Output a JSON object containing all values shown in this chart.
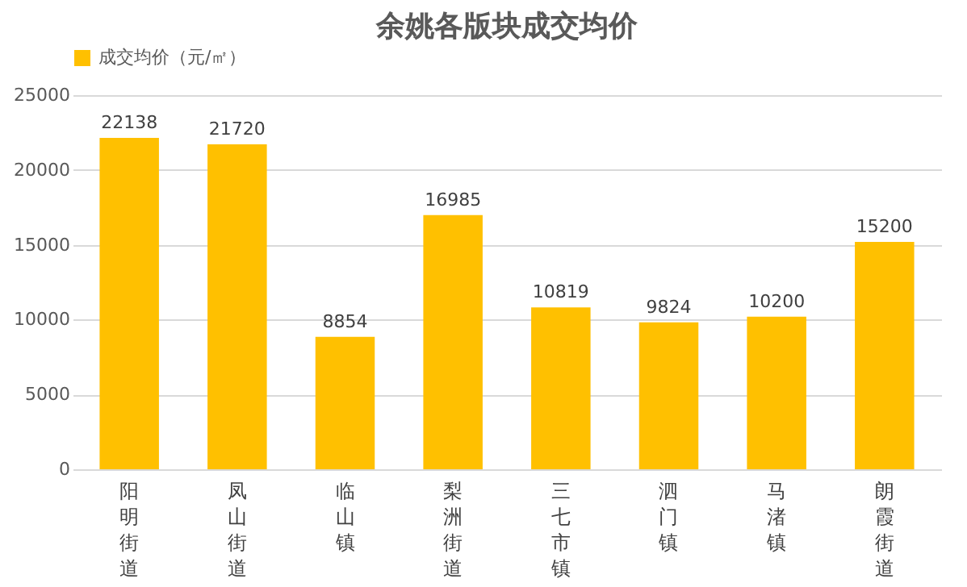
{
  "chart_data": {
    "type": "bar",
    "title": "余姚各版块成交均价",
    "categories": [
      "阳明街道",
      "凤山街道",
      "临山镇",
      "梨洲街道",
      "三七市镇",
      "泗门镇",
      "马渚镇",
      "朗霞街道"
    ],
    "series": [
      {
        "name": "成交均价（元/㎡）",
        "color": "#ffc000",
        "values": [
          22138,
          21720,
          8854,
          16985,
          10819,
          9824,
          10200,
          15200
        ]
      }
    ],
    "ylim": [
      0,
      25000
    ],
    "yticks": [
      0,
      5000,
      10000,
      15000,
      20000,
      25000
    ],
    "grid": "y",
    "legend": "top",
    "data_labels": true
  }
}
